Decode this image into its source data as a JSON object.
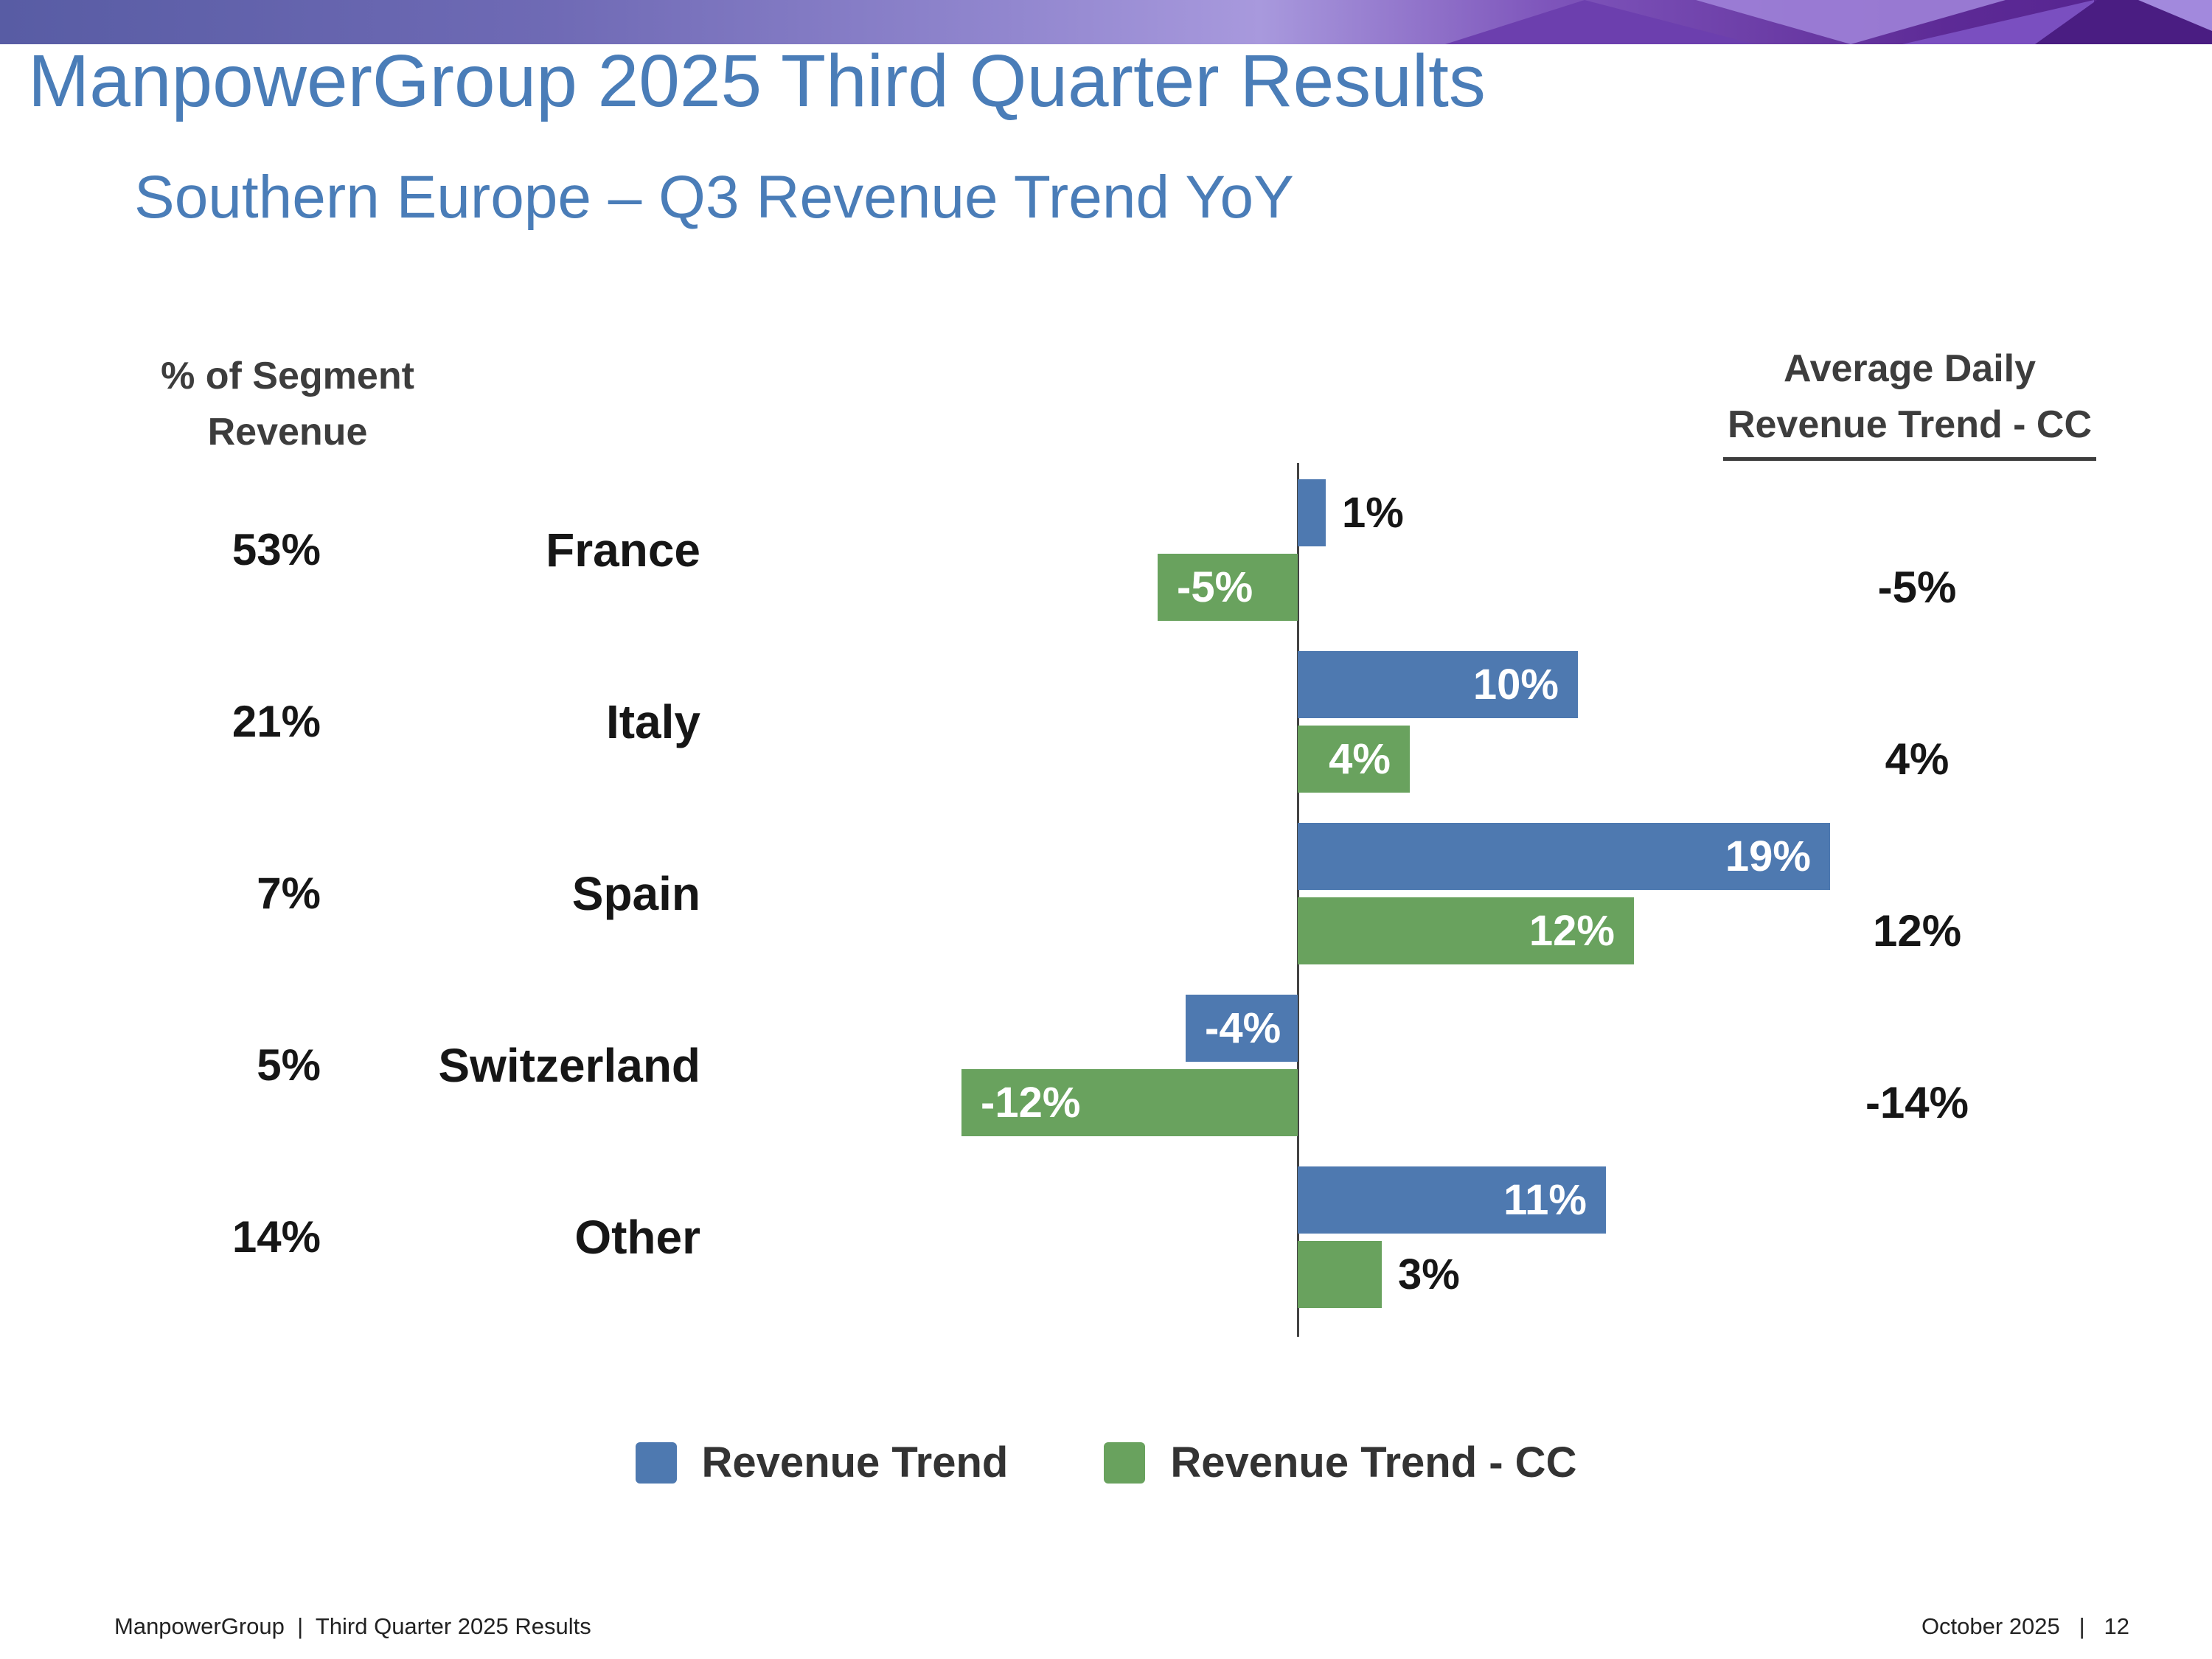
{
  "header": {
    "title": "ManpowerGroup 2025 Third Quarter Results",
    "subtitle": "Southern Europe – Q3 Revenue Trend YoY"
  },
  "panel": {
    "left_header_line1": "% of Segment",
    "left_header_line2": "Revenue",
    "right_header_line1": "Average Daily",
    "right_header_line2": "Revenue Trend - CC"
  },
  "chart_data": {
    "type": "bar",
    "orientation": "horizontal",
    "title": "Southern Europe – Q3 Revenue Trend YoY",
    "categories": [
      "France",
      "Italy",
      "Spain",
      "Switzerland",
      "Other"
    ],
    "segment_revenue_pct": [
      "53%",
      "21%",
      "7%",
      "5%",
      "14%"
    ],
    "series": [
      {
        "name": "Revenue Trend",
        "color": "#4e79b0",
        "values": [
          1,
          10,
          19,
          -4,
          11
        ]
      },
      {
        "name": "Revenue Trend - CC",
        "color": "#69a25e",
        "values": [
          -5,
          4,
          12,
          -12,
          3
        ]
      }
    ],
    "avg_daily_revenue_trend_cc": [
      "-5%",
      "4%",
      "12%",
      "-14%",
      ""
    ],
    "value_suffix": "%",
    "xlim": [
      -16,
      22
    ],
    "zero_line": true,
    "grid": false,
    "legend_position": "bottom"
  },
  "colors": {
    "accent_blue": "#4a7db8",
    "bar_blue": "#4e79b0",
    "bar_green": "#69a25e",
    "header_gray": "#3d3d3d"
  },
  "footer": {
    "left": "ManpowerGroup  |  Third Quarter 2025 Results",
    "right": "October 2025   |   12"
  }
}
